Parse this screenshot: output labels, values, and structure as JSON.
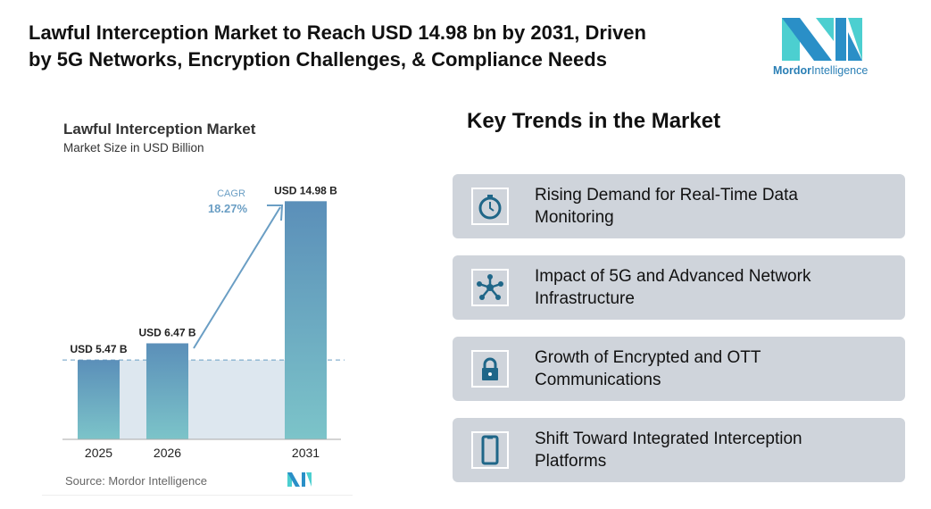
{
  "header": {
    "title_line1": "Lawful Interception Market to Reach USD 14.98 bn by 2031, Driven",
    "title_line2": "by 5G Networks, Encryption Challenges, & Compliance Needs"
  },
  "logo": {
    "text_bold": "Mordor",
    "text_light": "Intelligence",
    "colors": [
      "#2a8fc7",
      "#4ccfd0"
    ]
  },
  "chart_data": {
    "type": "bar",
    "title": "Lawful Interception Market",
    "subtitle": "Market Size in USD Billion",
    "categories": [
      "2025",
      "2026",
      "2031"
    ],
    "values": [
      5.47,
      6.47,
      14.98
    ],
    "data_labels": [
      "USD 5.47 B",
      "USD 6.47 B",
      "USD 14.98 B"
    ],
    "annotation": {
      "label": "CAGR",
      "value": "18.27%"
    },
    "source": "Source: Mordor Intelligence",
    "grid": false,
    "colors": {
      "bar_top": "#5b8fb9",
      "bar_bottom": "#7cc4c9",
      "shade": "#dde7ef",
      "arrow": "#6a9ec4"
    }
  },
  "trends": {
    "heading": "Key Trends in the Market",
    "items": [
      {
        "icon": "stopwatch-icon",
        "line1": "Rising Demand for Real-Time Data",
        "line2": "Monitoring"
      },
      {
        "icon": "network-hub-icon",
        "line1": "Impact of 5G and Advanced Network",
        "line2": "Infrastructure"
      },
      {
        "icon": "lock-icon",
        "line1": "Growth of Encrypted and OTT",
        "line2": "Communications"
      },
      {
        "icon": "mobile-phone-icon",
        "line1": "Shift Toward Integrated Interception",
        "line2": "Platforms"
      }
    ],
    "icon_color": "#1f6688"
  }
}
